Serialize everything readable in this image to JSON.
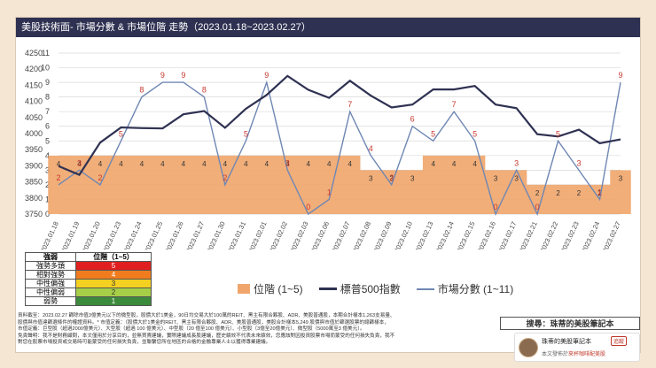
{
  "title": "美股技術面- 市場分數 & 市場位階 走勢（2023.01.18~2023.02.27）",
  "chart_data": {
    "type": "line",
    "x": [
      "2023.01.18",
      "2023.01.19",
      "2023.01.20",
      "2023.01.23",
      "2023.01.24",
      "2023.01.25",
      "2023.01.26",
      "2023.01.27",
      "2023.01.30",
      "2023.01.31",
      "2023.02.01",
      "2023.02.02",
      "2023.02.03",
      "2023.02.06",
      "2023.02.07",
      "2023.02.08",
      "2023.02.09",
      "2023.02.10",
      "2023.02.13",
      "2023.02.14",
      "2023.02.15",
      "2023.02.16",
      "2023.02.17",
      "2023.02.21",
      "2023.02.22",
      "2023.02.23",
      "2023.02.24",
      "2023.02.27"
    ],
    "y_ticks": [
      "0",
      "1",
      "2",
      "3",
      "4",
      "5",
      "6",
      "7",
      "8",
      "9",
      "10",
      "11"
    ],
    "y2_ticks": [
      "3750",
      "3800",
      "3850",
      "3900",
      "3950",
      "4000",
      "4050",
      "4100",
      "4150",
      "4200",
      "4250"
    ],
    "series": [
      {
        "name": "位階 (1~5)",
        "kind": "area",
        "color": "#f0a56a",
        "values": [
          4,
          4,
          4,
          4,
          4,
          4,
          4,
          4,
          4,
          4,
          4,
          4,
          4,
          4,
          4,
          3,
          3,
          3,
          4,
          4,
          4,
          3,
          3,
          2,
          2,
          2,
          2,
          3
        ]
      },
      {
        "name": "標普500指數",
        "kind": "line",
        "color": "#2f3152",
        "values": [
          3899,
          3872,
          3972,
          4019,
          4017,
          4016,
          4060,
          4070,
          4018,
          4077,
          4120,
          4179,
          4136,
          4111,
          4164,
          4118,
          4081,
          4090,
          4137,
          4137,
          4148,
          4090,
          4079,
          3998,
          3991,
          4012,
          3970,
          3982
        ]
      },
      {
        "name": "市場分數 (1~11)",
        "kind": "line",
        "color": "#6f87b3",
        "values": [
          2,
          3,
          2,
          5,
          8,
          9,
          9,
          8,
          2,
          5,
          9,
          3,
          0,
          1,
          7,
          4,
          2,
          6,
          5,
          7,
          5,
          0,
          3,
          0,
          5,
          3,
          1,
          9
        ]
      }
    ],
    "score_ylim": [
      0,
      11
    ],
    "index_ylim": [
      3750,
      4250
    ],
    "legend_position": "bottom",
    "grid": true
  },
  "level_table": {
    "headers": [
      "強弱",
      "位階（1~5）"
    ],
    "rows": [
      {
        "label": "強勢多頭",
        "level": "5",
        "color": "#e02020",
        "text_color": "#ffffff"
      },
      {
        "label": "相對強勢",
        "level": "4",
        "color": "#f07c1e",
        "text_color": "#ffffff"
      },
      {
        "label": "中性偏強",
        "level": "3",
        "color": "#f4d020",
        "text_color": "#333333"
      },
      {
        "label": "中性偏弱",
        "level": "2",
        "color": "#a7cf47",
        "text_color": "#333333"
      },
      {
        "label": "弱勢",
        "level": "1",
        "color": "#3c8a3c",
        "text_color": "#ffffff"
      }
    ]
  },
  "legend": {
    "level_label": "位階 (1~5)",
    "index_label": "標普500指數",
    "score_label": "市場分數 (1~11)"
  },
  "footer": {
    "line1": "資料截至：2023.02.27 篩除市值3億美元以下的微型股，股價大於1美金，90日均交易大於100萬的REIT、黑主有限合夥股、ADR、美股普通股，本期合計樣本1,263支易量、",
    "line2": "股價與市值達篩選條件的權證資料。* 市值定義：（股價大於1美金的REIT、黑主有限合夥股、ADR、美股普通股，美股合計樣本5,249 股價與市值於篩選股票的總篩樣本，",
    "line3": "市值定義：巨型股（超過2000億美元）、大型股（超過 100 億美元）、中型股（20 億至100 億美元）、小型股（3億至20億美元）、微型股（5000萬至3 億美元）。",
    "line4": "免責聲明：我不是財務顧問，本文僅用於分享目的，並無買賣建議，實際建議成長股建議，歷史績效不代表未來績效，您應該對因投資股票市場而蒙受的任何損失負責，我不",
    "line5": "對您在股票市場投資或交易時可能蒙受的任何損失負責，並聯繫您所在地區的合格的金融專業人士以獲得專業建議。"
  },
  "search_label": "搜尋：珠蒂的美股筆記本",
  "fb_card": {
    "name": "珠蒂的美股筆記本",
    "tag": "追蹤",
    "sub_prefix": "本文發佈於",
    "sub_link": "來杯咖啡配美股"
  }
}
